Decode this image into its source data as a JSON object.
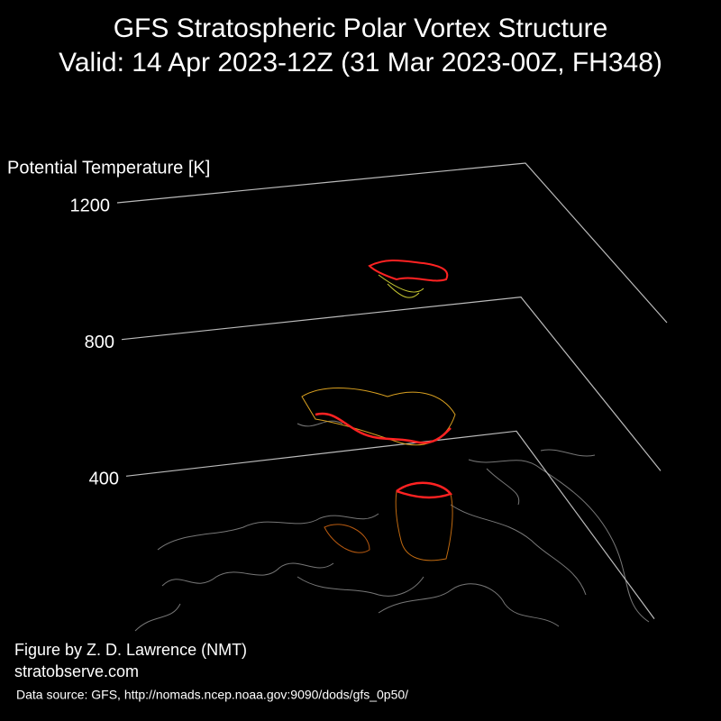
{
  "chart_data": {
    "type": "surface3d",
    "title": "GFS Stratospheric Polar Vortex Structure",
    "subtitle": "Valid: 14 Apr 2023-12Z  (31 Mar 2023-00Z, FH348)",
    "zlabel": "Potential Temperature [K]",
    "zlim": [
      0,
      1200
    ],
    "zticks": [
      400,
      800,
      1200
    ],
    "credit": "Figure by Z. D. Lawrence (NMT)",
    "website": "stratobserve.com",
    "source": "Data source: GFS, http://nomads.ncep.noaa.gov:9090/dods/gfs_0p50/"
  }
}
